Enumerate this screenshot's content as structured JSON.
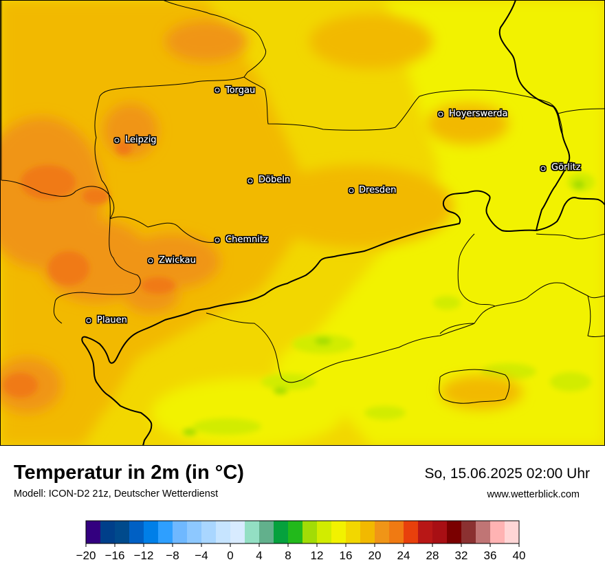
{
  "map": {
    "cities": [
      {
        "name": "Torgau"
      },
      {
        "name": "Hoyerswerda"
      },
      {
        "name": "Leipzig"
      },
      {
        "name": "Görlitz"
      },
      {
        "name": "Döbeln"
      },
      {
        "name": "Dresden"
      },
      {
        "name": "Chemnitz"
      },
      {
        "name": "Zwickau"
      },
      {
        "name": "Plauen"
      }
    ]
  },
  "header": {
    "title": "Temperatur in 2m (in °C)",
    "model": "Modell: ICON-D2 21z, Deutscher Wetterdienst",
    "datetime": "So, 15.06.2025 02:00 Uhr",
    "site": "www.wetterblick.com"
  },
  "legend": {
    "ticks": [
      "−20",
      "−16",
      "−12",
      "−8",
      "−4",
      "0",
      "4",
      "8",
      "12",
      "16",
      "20",
      "24",
      "28",
      "32",
      "36",
      "40"
    ],
    "min": -20,
    "max": 40,
    "step": 2,
    "colors": [
      "#33007f",
      "#003f8a",
      "#004a8c",
      "#0060c4",
      "#007fe8",
      "#2e9fff",
      "#6fb8ff",
      "#8dc8ff",
      "#a9d6ff",
      "#c6e4ff",
      "#d8ebff",
      "#93dfc3",
      "#62b08c",
      "#05a13d",
      "#22b91b",
      "#a2dc06",
      "#d2ec00",
      "#f2f200",
      "#f2d700",
      "#f2b900",
      "#f09517",
      "#f07a12",
      "#e8400c",
      "#b81716",
      "#a80f14",
      "#7a0000",
      "#8b3131",
      "#c07575",
      "#ffb3b3",
      "#ffd6d6"
    ]
  }
}
